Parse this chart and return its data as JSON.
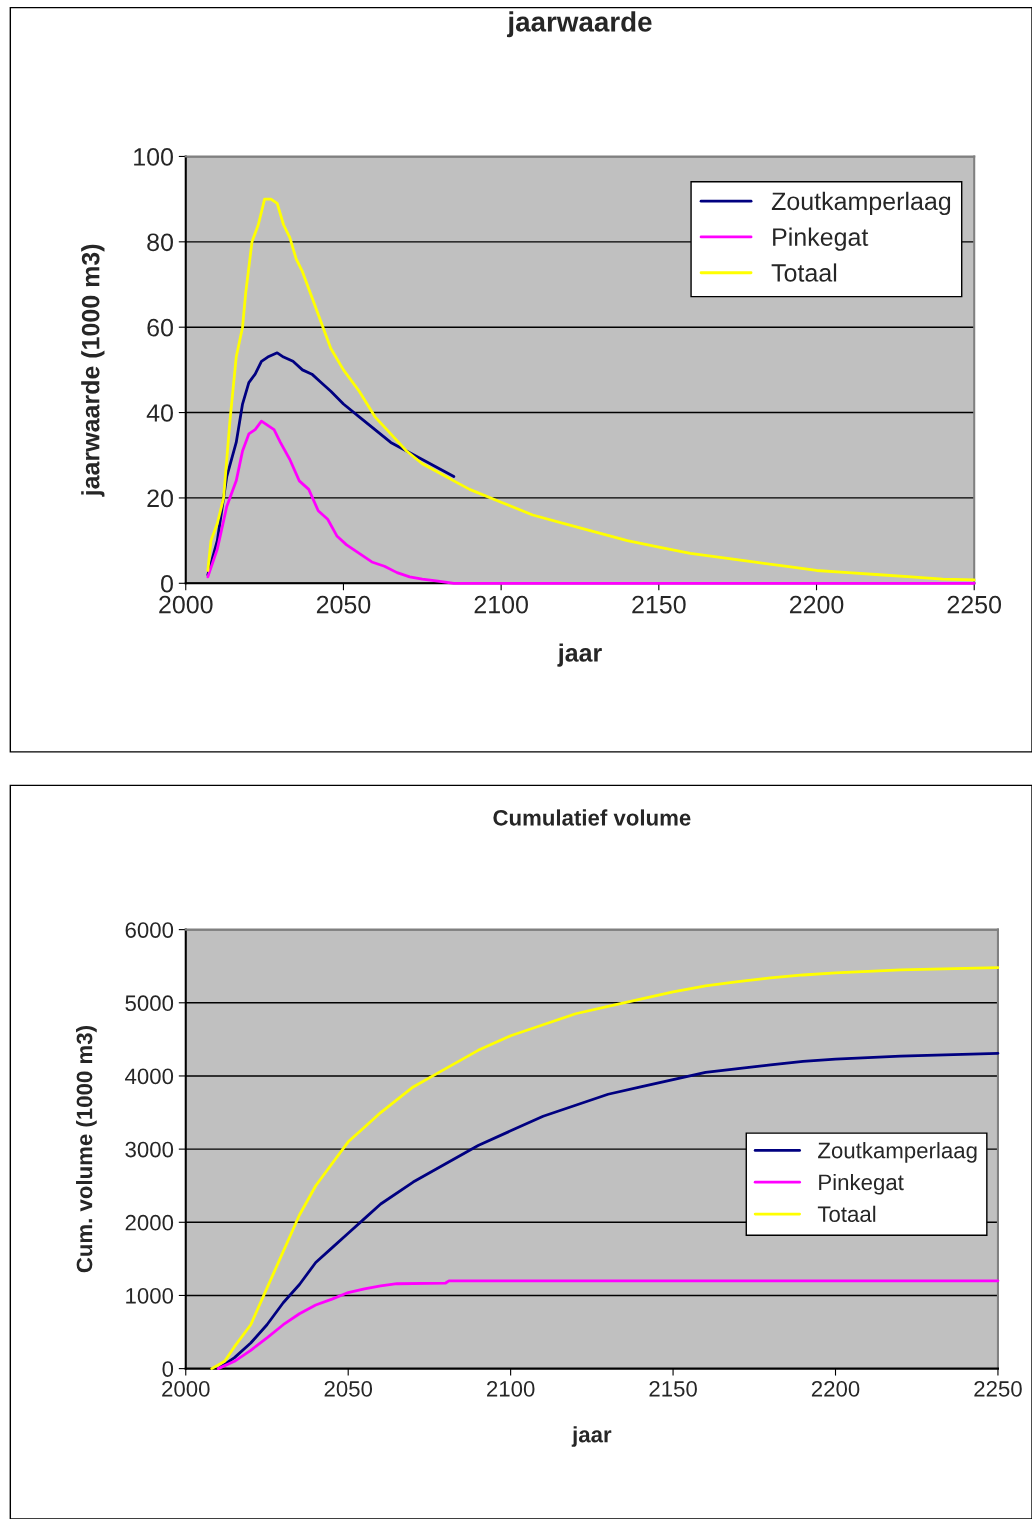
{
  "chart_data": [
    {
      "type": "line",
      "title": "jaarwaarde",
      "xlabel": "jaar",
      "ylabel": "jaarwaarde (1000 m3)",
      "xlim": [
        2000,
        2250
      ],
      "xticks": [
        2000,
        2050,
        2100,
        2150,
        2200,
        2250
      ],
      "ylim": [
        0,
        100
      ],
      "yticks": [
        0,
        20,
        40,
        60,
        80,
        100
      ],
      "grid": "y",
      "legend": "top right",
      "marker": "none",
      "line_style": "solid",
      "series": [
        {
          "name": "Zoutkamperlaag",
          "color": "#000080",
          "x": [
            2007,
            2010,
            2013,
            2016,
            2018,
            2020,
            2022,
            2024,
            2026,
            2029,
            2031,
            2034,
            2037,
            2040,
            2043,
            2046,
            2050,
            2055,
            2060,
            2065,
            2070,
            2075,
            2080,
            2085
          ],
          "values": [
            2,
            10,
            25,
            33,
            42,
            47,
            49,
            52,
            53,
            54,
            53,
            52,
            50,
            49,
            47,
            45,
            42,
            39,
            36,
            33,
            31,
            29,
            27,
            25
          ]
        },
        {
          "name": "Pinkegat",
          "color": "#ff00ff",
          "x": [
            2007,
            2010,
            2013,
            2016,
            2018,
            2020,
            2022,
            2024,
            2026,
            2028,
            2030,
            2033,
            2036,
            2039,
            2042,
            2045,
            2048,
            2051,
            2055,
            2059,
            2063,
            2067,
            2071,
            2075,
            2080,
            2085,
            2250
          ],
          "values": [
            1.5,
            8,
            18,
            24,
            31,
            35,
            36,
            38,
            37,
            36,
            33,
            29,
            24,
            22,
            17,
            15,
            11,
            9,
            7,
            5,
            4,
            2.5,
            1.5,
            1,
            0.5,
            0,
            0
          ]
        },
        {
          "name": "Totaal",
          "color": "#ffff00",
          "x": [
            2007,
            2008,
            2010,
            2012,
            2014,
            2016,
            2018,
            2019,
            2021,
            2023,
            2025,
            2027,
            2029,
            2031,
            2033,
            2035,
            2037,
            2040,
            2043,
            2046,
            2050,
            2055,
            2060,
            2065,
            2070,
            2075,
            2080,
            2085,
            2090,
            2100,
            2110,
            2120,
            2130,
            2140,
            2150,
            2160,
            2170,
            2180,
            2190,
            2200,
            2210,
            2220,
            2230,
            2240,
            2250
          ],
          "values": [
            3,
            10,
            14,
            20,
            38,
            53,
            60,
            68,
            80,
            84,
            90,
            90,
            89,
            84,
            81,
            76,
            73,
            67,
            61,
            55,
            50,
            45,
            39,
            35,
            31,
            28,
            26,
            24,
            22,
            19,
            16,
            14,
            12,
            10,
            8.5,
            7,
            6,
            5,
            4,
            3,
            2.5,
            2,
            1.5,
            1,
            0.8
          ]
        }
      ]
    },
    {
      "type": "line",
      "title": "Cumulatief volume",
      "xlabel": "jaar",
      "ylabel": "Cum. volume (1000 m3)",
      "xlim": [
        2000,
        2250
      ],
      "xticks": [
        2000,
        2050,
        2100,
        2150,
        2200,
        2250
      ],
      "ylim": [
        0,
        6000
      ],
      "yticks": [
        0,
        1000,
        2000,
        3000,
        4000,
        5000,
        6000
      ],
      "grid": "y",
      "legend": "right",
      "marker": "none",
      "line_style": "solid",
      "series": [
        {
          "name": "Zoutkamperlaag",
          "color": "#000080",
          "x": [
            2010,
            2015,
            2020,
            2025,
            2030,
            2035,
            2040,
            2045,
            2050,
            2055,
            2060,
            2070,
            2080,
            2090,
            2100,
            2110,
            2120,
            2130,
            2140,
            2150,
            2160,
            2170,
            2180,
            2190,
            2200,
            2220,
            2250
          ],
          "values": [
            0,
            150,
            350,
            600,
            900,
            1150,
            1450,
            1650,
            1850,
            2050,
            2250,
            2550,
            2800,
            3050,
            3250,
            3450,
            3600,
            3750,
            3850,
            3950,
            4050,
            4100,
            4150,
            4200,
            4230,
            4270,
            4310
          ]
        },
        {
          "name": "Pinkegat",
          "color": "#ff00ff",
          "x": [
            2010,
            2015,
            2020,
            2025,
            2030,
            2035,
            2040,
            2045,
            2050,
            2055,
            2060,
            2065,
            2080,
            2081,
            2250
          ],
          "values": [
            0,
            100,
            250,
            420,
            600,
            750,
            870,
            950,
            1040,
            1090,
            1130,
            1160,
            1170,
            1200,
            1200
          ]
        },
        {
          "name": "Totaal",
          "color": "#ffff00",
          "x": [
            2008,
            2012,
            2015,
            2020,
            2025,
            2030,
            2035,
            2040,
            2045,
            2050,
            2055,
            2060,
            2070,
            2080,
            2090,
            2100,
            2110,
            2120,
            2130,
            2140,
            2150,
            2160,
            2170,
            2180,
            2190,
            2200,
            2220,
            2250
          ],
          "values": [
            0,
            100,
            300,
            600,
            1100,
            1600,
            2100,
            2500,
            2800,
            3100,
            3300,
            3500,
            3850,
            4100,
            4350,
            4550,
            4700,
            4850,
            4950,
            5050,
            5150,
            5230,
            5290,
            5340,
            5380,
            5410,
            5450,
            5480
          ]
        }
      ]
    }
  ]
}
